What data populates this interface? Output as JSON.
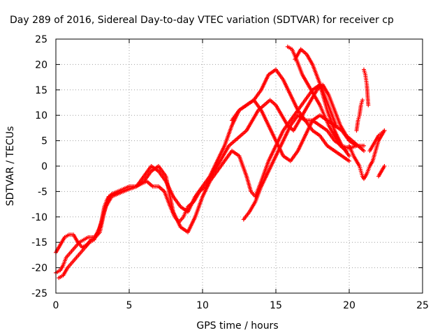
{
  "chart_data": {
    "type": "scatter",
    "title": "Day 289 of 2016, Sidereal Day-to-day VTEC variation (SDTVAR) for receiver cp",
    "xlabel": "GPS time / hours",
    "ylabel": "SDTVAR / TECUs",
    "xlim": [
      0,
      25
    ],
    "ylim": [
      -25,
      25
    ],
    "xticks": [
      "0",
      "5",
      "10",
      "15",
      "20",
      "25"
    ],
    "yticks": [
      "25",
      "20",
      "15",
      "10",
      "5",
      "0",
      "-5",
      "-10",
      "-15",
      "-20",
      "-25"
    ],
    "grid": true,
    "marker": "plus",
    "color": "#ff0000",
    "series": [
      {
        "x": [
          0.0,
          0.3,
          0.5,
          0.7,
          1.0,
          1.3,
          1.6,
          1.9,
          2.2,
          2.6,
          2.9,
          3.1,
          3.3,
          3.5,
          3.8,
          4.2,
          4.6,
          5.0,
          5.4,
          5.8,
          6.2,
          6.6,
          7.0,
          7.4,
          7.8,
          8.1,
          8.4,
          8.7,
          9.0,
          9.4,
          9.8,
          10.2,
          10.6,
          11.0,
          11.4,
          11.8,
          12.2,
          12.6,
          13.0,
          13.4,
          13.8,
          14.2,
          14.6,
          15.0,
          15.4,
          15.8,
          16.2,
          16.6,
          17.0,
          17.4,
          17.8,
          18.2,
          18.6,
          19.0,
          19.4,
          19.8,
          20.2,
          20.6,
          21.0
        ],
        "y": [
          -21,
          -20.5,
          -19.5,
          -18,
          -17,
          -16,
          -15,
          -14.5,
          -14,
          -14,
          -13,
          -11,
          -8,
          -6.5,
          -5.5,
          -5,
          -4.5,
          -4,
          -4,
          -3.5,
          -3,
          -4,
          -4,
          -5,
          -8,
          -10,
          -11,
          -10,
          -8,
          -7,
          -5,
          -4,
          -2,
          0,
          2,
          4,
          5,
          6,
          7,
          9,
          11,
          12,
          13,
          12,
          10,
          8,
          7,
          9,
          11,
          13,
          15,
          16,
          14,
          11,
          8,
          6,
          5,
          4,
          3
        ]
      },
      {
        "x": [
          0.0,
          0.3,
          0.6,
          0.9,
          1.2,
          1.5,
          1.8,
          2.1,
          2.4,
          2.7,
          3.0,
          3.3,
          3.6,
          4.0,
          4.5,
          5.0,
          5.5,
          6.0,
          6.5,
          7.0,
          7.5,
          8.0,
          8.5,
          9.0,
          9.5,
          10.0,
          10.5,
          11.0,
          11.5,
          12.0,
          12.5,
          13.0,
          13.5,
          14.0,
          14.5,
          15.0,
          15.5,
          16.0,
          16.5,
          17.0,
          17.5,
          18.0,
          18.5,
          19.0,
          19.5,
          20.0,
          20.5,
          21.0
        ],
        "y": [
          -17,
          -15.5,
          -14,
          -13.5,
          -13.5,
          -15,
          -16,
          -15.5,
          -14.5,
          -14,
          -13,
          -9,
          -6,
          -5.5,
          -5,
          -4.5,
          -4,
          -2,
          0,
          -1,
          -3,
          -6,
          -8,
          -9,
          -6,
          -4,
          -2,
          1,
          4,
          8,
          11,
          12,
          13,
          15,
          18,
          19,
          17,
          14,
          11,
          9,
          9,
          8,
          7,
          5,
          4,
          3.5,
          4,
          4
        ]
      },
      {
        "x": [
          0.2,
          0.5,
          0.8,
          1.1,
          1.4,
          1.7,
          2.0,
          2.3,
          2.6,
          3.0,
          3.4,
          3.8,
          4.2,
          4.6,
          5.0,
          5.5,
          6.0,
          6.5,
          7.0,
          7.5,
          8.0,
          8.5,
          9.0,
          9.5,
          10.0,
          10.5,
          11.0,
          11.5,
          12.0,
          12.5,
          13.0,
          13.3,
          13.6,
          14.0,
          14.5,
          15.0,
          15.5,
          16.0,
          16.5,
          17.0,
          17.5,
          18.0,
          18.5,
          19.0,
          19.5,
          20.0
        ],
        "y": [
          -22,
          -21.5,
          -20,
          -19,
          -18,
          -17,
          -16,
          -15,
          -14.5,
          -12,
          -8,
          -6,
          -5.5,
          -5,
          -4.5,
          -4,
          -3,
          -1,
          0,
          -2,
          -9,
          -12,
          -13,
          -10,
          -6,
          -3,
          -1,
          1,
          3,
          2,
          -2,
          -5,
          -6,
          -3,
          1,
          4,
          7,
          9,
          11,
          13,
          15,
          16,
          11,
          7,
          4,
          2
        ]
      },
      {
        "x": [
          12.0,
          12.5,
          13.0,
          13.5,
          14.0,
          14.5,
          15.0,
          15.5,
          16.0,
          16.5,
          17.0,
          17.5,
          18.0,
          18.5,
          19.0,
          19.5,
          20.0,
          20.5
        ],
        "y": [
          9,
          11,
          12,
          13,
          11,
          8,
          5,
          2,
          1,
          3,
          6,
          9,
          10,
          9,
          8,
          7,
          5,
          4
        ]
      },
      {
        "x": [
          12.8,
          13.2,
          13.6,
          14.0,
          14.5,
          15.0,
          15.5,
          16.0,
          16.5,
          17.0,
          17.5,
          18.0,
          18.5,
          19.0,
          19.5,
          20.0
        ],
        "y": [
          -10.5,
          -9,
          -7,
          -4,
          -1,
          2,
          5,
          8,
          10,
          9,
          7,
          6,
          4,
          3,
          2,
          1
        ]
      },
      {
        "x": [
          15.8,
          16.1,
          16.4,
          16.8,
          17.2,
          17.6,
          18.0,
          18.3,
          18.6,
          19.0,
          19.4,
          19.8
        ],
        "y": [
          23.5,
          23,
          21,
          18,
          16,
          14,
          12,
          10,
          8,
          6,
          4,
          3
        ]
      },
      {
        "x": [
          16.3,
          16.7,
          17.1,
          17.5,
          17.9,
          18.3,
          18.7,
          19.1
        ],
        "y": [
          21,
          23,
          22,
          20,
          17,
          14,
          11,
          8
        ]
      },
      {
        "x": [
          20.0,
          20.3,
          20.5,
          20.7,
          20.8,
          20.9,
          21.0,
          21.2,
          21.4,
          21.6,
          21.8,
          22.0,
          22.2,
          22.4
        ],
        "y": [
          4,
          2,
          1,
          0,
          -1,
          -2,
          -2.5,
          -1.5,
          0,
          1,
          3,
          5,
          6,
          7
        ]
      },
      {
        "x": [
          20.5,
          20.6,
          20.7,
          20.8,
          20.9
        ],
        "y": [
          7,
          9,
          10,
          12,
          13
        ]
      },
      {
        "x": [
          21.0,
          21.1,
          21.15,
          21.2,
          21.25,
          21.3
        ],
        "y": [
          19,
          18,
          17,
          16,
          14,
          12
        ]
      },
      {
        "x": [
          21.4,
          21.6,
          21.8,
          22.0,
          22.2,
          22.4
        ],
        "y": [
          3,
          4,
          5,
          6,
          6.5,
          7
        ]
      },
      {
        "x": [
          22.0,
          22.2,
          22.4
        ],
        "y": [
          -2,
          -1,
          0
        ]
      }
    ]
  }
}
